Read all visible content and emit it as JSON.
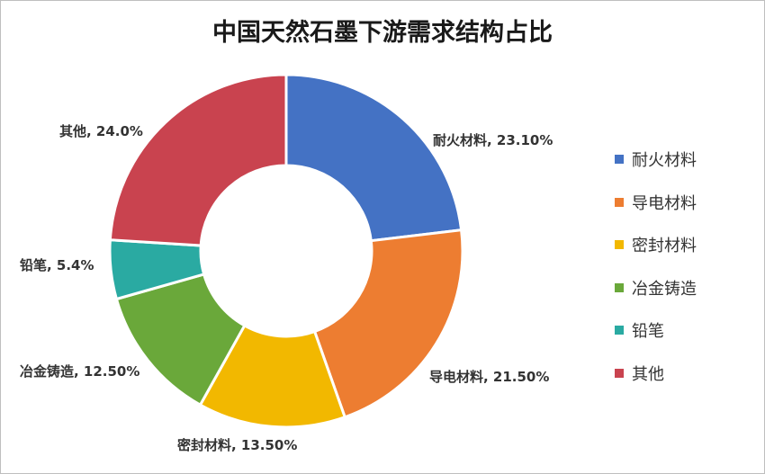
{
  "chart_data": {
    "type": "pie",
    "title": "中国天然石墨下游需求结构占比",
    "categories": [
      "耐火材料",
      "导电材料",
      "密封材料",
      "冶金铸造",
      "铅笔",
      "其他"
    ],
    "values": [
      23.1,
      21.5,
      13.5,
      12.5,
      5.4,
      24.0
    ],
    "data_labels": [
      "耐火材料, 23.10%",
      "导电材料, 21.50%",
      "密封材料, 13.50%",
      "冶金铸造, 12.50%",
      "铅笔, 5.4%",
      "其他, 24.0%"
    ],
    "colors": [
      "#4472c4",
      "#ed7d31",
      "#f2b800",
      "#6aa83a",
      "#2aaaa2",
      "#c9434f"
    ],
    "hole": "donut",
    "legend_position": "right"
  }
}
